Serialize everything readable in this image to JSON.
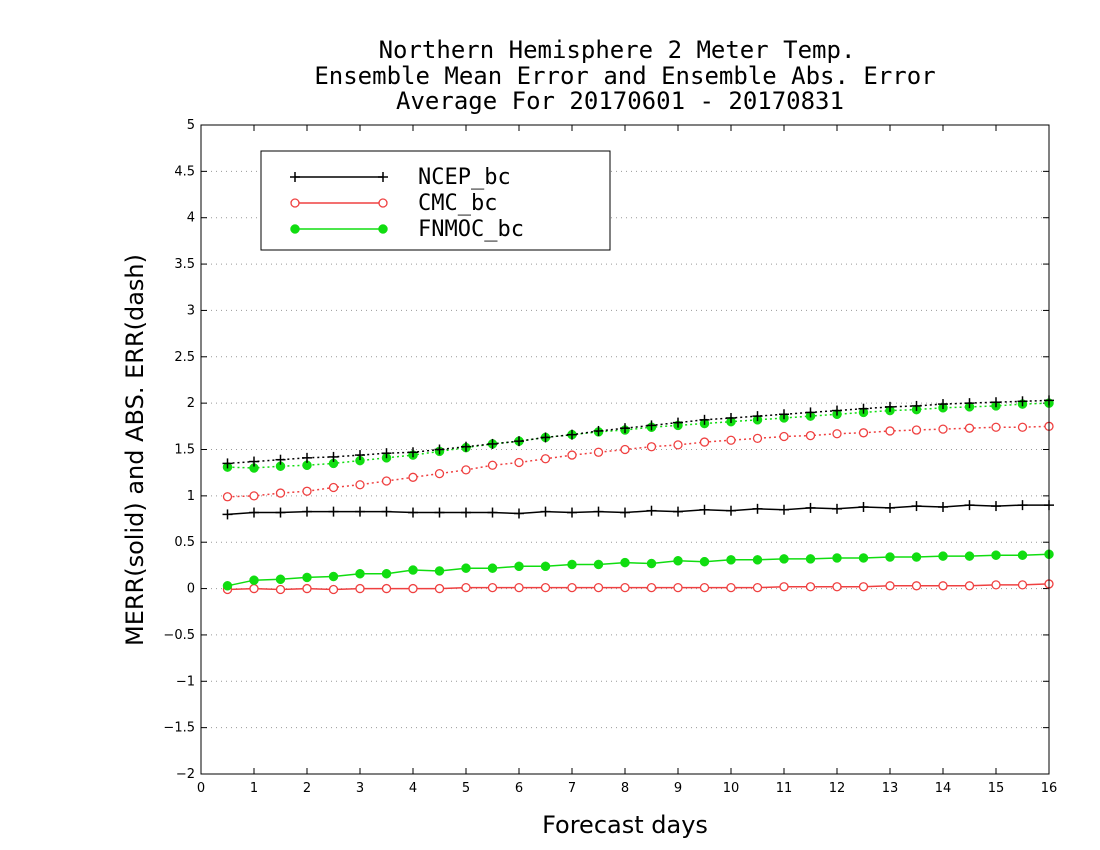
{
  "chart_data": {
    "type": "line",
    "title_lines": [
      "Northern Hemisphere 2 Meter Temp.",
      "Ensemble Mean Error and Ensemble Abs. Error",
      "Average For 20170601 - 20170831"
    ],
    "xlabel": "Forecast days",
    "ylabel": "MERR(solid) and ABS. ERR(dash)",
    "xlim": [
      0,
      16
    ],
    "ylim": [
      -2,
      5
    ],
    "x_ticks": [
      "0",
      "1",
      "2",
      "3",
      "4",
      "5",
      "6",
      "7",
      "8",
      "9",
      "10",
      "11",
      "12",
      "13",
      "14",
      "15",
      "16"
    ],
    "y_ticks": [
      "-2",
      "-1.5",
      "-1",
      "-0.5",
      "0",
      "0.5",
      "1",
      "1.5",
      "2",
      "2.5",
      "3",
      "3.5",
      "4",
      "4.5",
      "5"
    ],
    "grid": "horizontal dotted",
    "legend_position": "top-left",
    "x": [
      0.5,
      1,
      1.5,
      2,
      2.5,
      3,
      3.5,
      4,
      4.5,
      5,
      5.5,
      6,
      6.5,
      7,
      7.5,
      8,
      8.5,
      9,
      9.5,
      10,
      10.5,
      11,
      11.5,
      12,
      12.5,
      13,
      13.5,
      14,
      14.5,
      15,
      15.5,
      16
    ],
    "series": [
      {
        "name": "NCEP_bc",
        "color": "#000000",
        "marker": "plus",
        "merr": [
          0.8,
          0.82,
          0.82,
          0.83,
          0.83,
          0.83,
          0.83,
          0.82,
          0.82,
          0.82,
          0.82,
          0.81,
          0.83,
          0.82,
          0.83,
          0.82,
          0.84,
          0.83,
          0.85,
          0.84,
          0.86,
          0.85,
          0.87,
          0.86,
          0.88,
          0.87,
          0.89,
          0.88,
          0.9,
          0.89,
          0.9,
          0.9
        ],
        "abs_err": [
          1.35,
          1.37,
          1.39,
          1.41,
          1.42,
          1.44,
          1.46,
          1.47,
          1.5,
          1.53,
          1.56,
          1.59,
          1.63,
          1.66,
          1.7,
          1.73,
          1.76,
          1.79,
          1.82,
          1.84,
          1.86,
          1.88,
          1.9,
          1.92,
          1.94,
          1.96,
          1.97,
          1.99,
          2.0,
          2.01,
          2.02,
          2.03
        ]
      },
      {
        "name": "CMC_bc",
        "color": "#ef4040",
        "marker": "open-circle",
        "merr": [
          -0.01,
          0.0,
          -0.01,
          0.0,
          -0.01,
          0.0,
          0.0,
          0.0,
          0.0,
          0.01,
          0.01,
          0.01,
          0.01,
          0.01,
          0.01,
          0.01,
          0.01,
          0.01,
          0.01,
          0.01,
          0.01,
          0.02,
          0.02,
          0.02,
          0.02,
          0.03,
          0.03,
          0.03,
          0.03,
          0.04,
          0.04,
          0.05
        ],
        "abs_err": [
          0.99,
          1.0,
          1.03,
          1.05,
          1.09,
          1.12,
          1.16,
          1.2,
          1.24,
          1.28,
          1.33,
          1.36,
          1.4,
          1.44,
          1.47,
          1.5,
          1.53,
          1.55,
          1.58,
          1.6,
          1.62,
          1.64,
          1.65,
          1.67,
          1.68,
          1.7,
          1.71,
          1.72,
          1.73,
          1.74,
          1.74,
          1.75
        ]
      },
      {
        "name": "FNMOC_bc",
        "color": "#10dd10",
        "marker": "filled-circle",
        "merr": [
          0.03,
          0.09,
          0.1,
          0.12,
          0.13,
          0.16,
          0.16,
          0.2,
          0.19,
          0.22,
          0.22,
          0.24,
          0.24,
          0.26,
          0.26,
          0.28,
          0.27,
          0.3,
          0.29,
          0.31,
          0.31,
          0.32,
          0.32,
          0.33,
          0.33,
          0.34,
          0.34,
          0.35,
          0.35,
          0.36,
          0.36,
          0.37
        ],
        "abs_err": [
          1.31,
          1.3,
          1.32,
          1.33,
          1.35,
          1.38,
          1.41,
          1.44,
          1.48,
          1.52,
          1.56,
          1.59,
          1.63,
          1.66,
          1.69,
          1.71,
          1.74,
          1.76,
          1.78,
          1.8,
          1.82,
          1.84,
          1.86,
          1.88,
          1.9,
          1.92,
          1.93,
          1.95,
          1.96,
          1.97,
          1.99,
          2.0
        ]
      }
    ]
  }
}
